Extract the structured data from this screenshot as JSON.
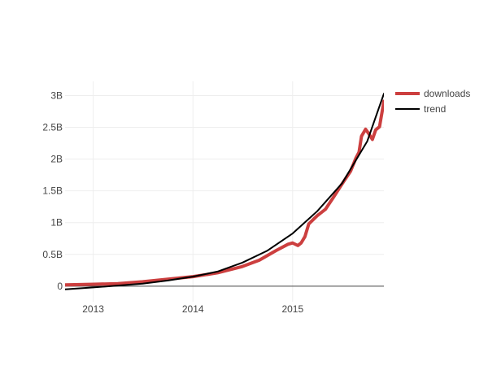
{
  "chart_data": {
    "type": "line",
    "title": "",
    "xlabel": "",
    "ylabel": "",
    "grid": true,
    "legend_position": "top-right",
    "xlim": [
      "2012-09-20",
      "2015-12-01"
    ],
    "ylim": [
      -0.0,
      3.0
    ],
    "x_tick_labels": [
      "2013",
      "2014",
      "2015"
    ],
    "x_tick_values": [
      "2013-01-01",
      "2014-01-01",
      "2015-01-01"
    ],
    "y_tick_labels": [
      "0",
      "0.5B",
      "1B",
      "1.5B",
      "2B",
      "2.5B",
      "3B"
    ],
    "y_tick_values": [
      0,
      0.5,
      1,
      1.5,
      2,
      2.5,
      3
    ],
    "series": [
      {
        "name": "downloads",
        "color": "#cc3f3f",
        "x": [
          "2012-09-20",
          "2013-01-01",
          "2013-04-01",
          "2013-07-01",
          "2013-10-01",
          "2014-01-01",
          "2014-04-01",
          "2014-07-01",
          "2014-09-01",
          "2014-11-01",
          "2014-12-15",
          "2015-01-01",
          "2015-01-20",
          "2015-02-01",
          "2015-02-15",
          "2015-03-01",
          "2015-04-01",
          "2015-05-01",
          "2015-06-01",
          "2015-07-01",
          "2015-08-01",
          "2015-08-20",
          "2015-09-01",
          "2015-09-10",
          "2015-09-25",
          "2015-10-05",
          "2015-10-20",
          "2015-11-01",
          "2015-11-15",
          "2015-12-01"
        ],
        "values": [
          0.02,
          0.03,
          0.04,
          0.07,
          0.11,
          0.15,
          0.21,
          0.31,
          0.41,
          0.56,
          0.66,
          0.68,
          0.64,
          0.68,
          0.78,
          0.98,
          1.11,
          1.21,
          1.41,
          1.61,
          1.81,
          2.01,
          2.11,
          2.36,
          2.47,
          2.41,
          2.31,
          2.46,
          2.51,
          2.91
        ]
      },
      {
        "name": "trend",
        "color": "#000000",
        "x": [
          "2012-09-20",
          "2013-01-01",
          "2013-04-01",
          "2013-07-01",
          "2013-10-01",
          "2014-01-01",
          "2014-04-01",
          "2014-07-01",
          "2014-10-01",
          "2015-01-01",
          "2015-04-01",
          "2015-07-01",
          "2015-10-01",
          "2015-12-01"
        ],
        "values": [
          -0.05,
          -0.02,
          0.01,
          0.04,
          0.09,
          0.15,
          0.23,
          0.37,
          0.56,
          0.83,
          1.18,
          1.62,
          2.28,
          3.03
        ]
      }
    ]
  }
}
